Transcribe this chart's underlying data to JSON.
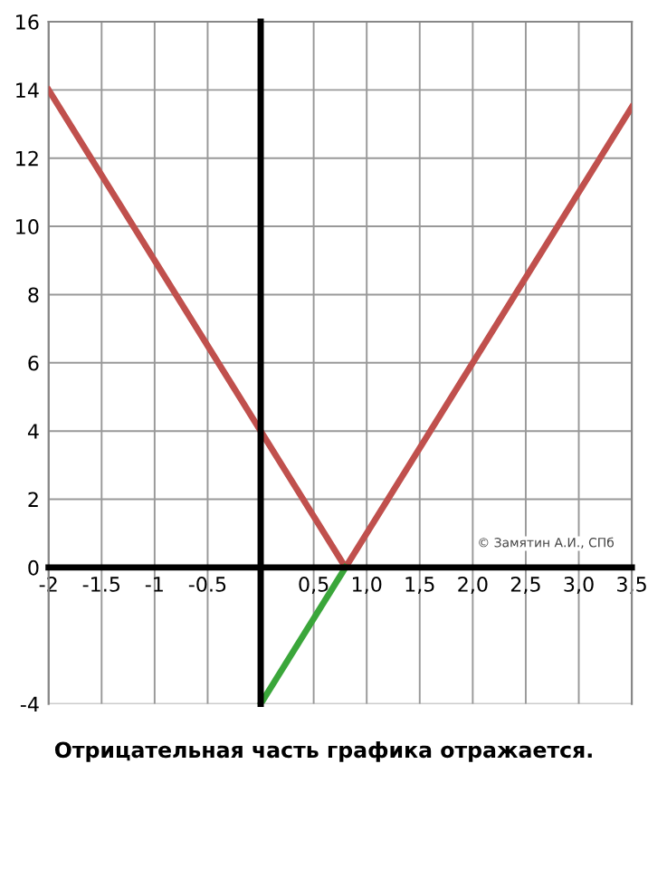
{
  "chart_data": {
    "type": "line",
    "series": [
      {
        "x": [
          -2,
          0.8,
          3.5
        ],
        "values": [
          14,
          0,
          13.5
        ],
        "color": "#c0504d"
      },
      {
        "x": [
          0,
          0.8
        ],
        "values": [
          -4,
          0
        ],
        "color": "#3aa63a"
      }
    ],
    "xlim": [
      -2,
      3.5
    ],
    "xticks": [
      -2,
      -1.5,
      -1,
      -0.5,
      {
        "value": 0,
        "label": null
      },
      {
        "value": 0.5,
        "label": "0,5"
      },
      {
        "value": 1,
        "label": "1,0"
      },
      {
        "value": 1.5,
        "label": "1,5"
      },
      {
        "value": 2,
        "label": "2,0"
      },
      {
        "value": 2.5,
        "label": "2,5"
      },
      {
        "value": 3,
        "label": "3,0"
      },
      {
        "value": 3.5,
        "label": "3,5"
      }
    ],
    "ylim": [
      -4,
      16
    ],
    "yticks": [
      -4,
      0,
      2,
      4,
      6,
      8,
      10,
      12,
      14,
      16
    ],
    "grid": true,
    "legend": false,
    "marker": "none",
    "line_style": "solid",
    "annotations": [
      "© Замятин А.И., СПб",
      "Отрицательная часть графика отражается."
    ]
  }
}
